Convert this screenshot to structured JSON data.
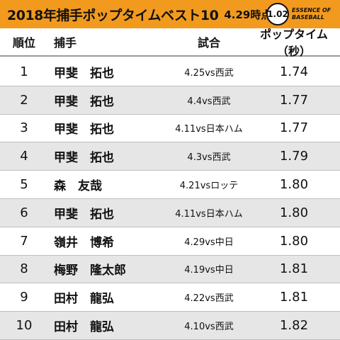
{
  "title": {
    "main": "2018年捕手ポップタイムベスト10",
    "date": "4.29時点"
  },
  "logo": {
    "badge": "1.02",
    "line1": "ESSENCE OF",
    "line2": "BASEBALL"
  },
  "columns": {
    "rank": "順位",
    "catcher": "捕手",
    "game": "試合",
    "pop_time": "ポップタイム（秒）"
  },
  "rows": [
    {
      "rank": "1",
      "name": "甲斐　拓也",
      "game": "4.25vs西武",
      "time": "1.74"
    },
    {
      "rank": "2",
      "name": "甲斐　拓也",
      "game": "4.4vs西武",
      "time": "1.77"
    },
    {
      "rank": "3",
      "name": "甲斐　拓也",
      "game": "4.11vs日本ハム",
      "time": "1.77"
    },
    {
      "rank": "4",
      "name": "甲斐　拓也",
      "game": "4.3vs西武",
      "time": "1.79"
    },
    {
      "rank": "5",
      "name": "森　友哉",
      "game": "4.21vsロッテ",
      "time": "1.80"
    },
    {
      "rank": "6",
      "name": "甲斐　拓也",
      "game": "4.11vs日本ハム",
      "time": "1.80"
    },
    {
      "rank": "7",
      "name": "嶺井　博希",
      "game": "4.29vs中日",
      "time": "1.80"
    },
    {
      "rank": "8",
      "name": "梅野　隆太郎",
      "game": "4.19vs中日",
      "time": "1.81"
    },
    {
      "rank": "9",
      "name": "田村　龍弘",
      "game": "4.22vs西武",
      "time": "1.81"
    },
    {
      "rank": "10",
      "name": "田村　龍弘",
      "game": "4.10vs西武",
      "time": "1.82"
    }
  ],
  "colors": {
    "title_bar": "#f29a1e",
    "alt_row": "#e6e6e6"
  }
}
